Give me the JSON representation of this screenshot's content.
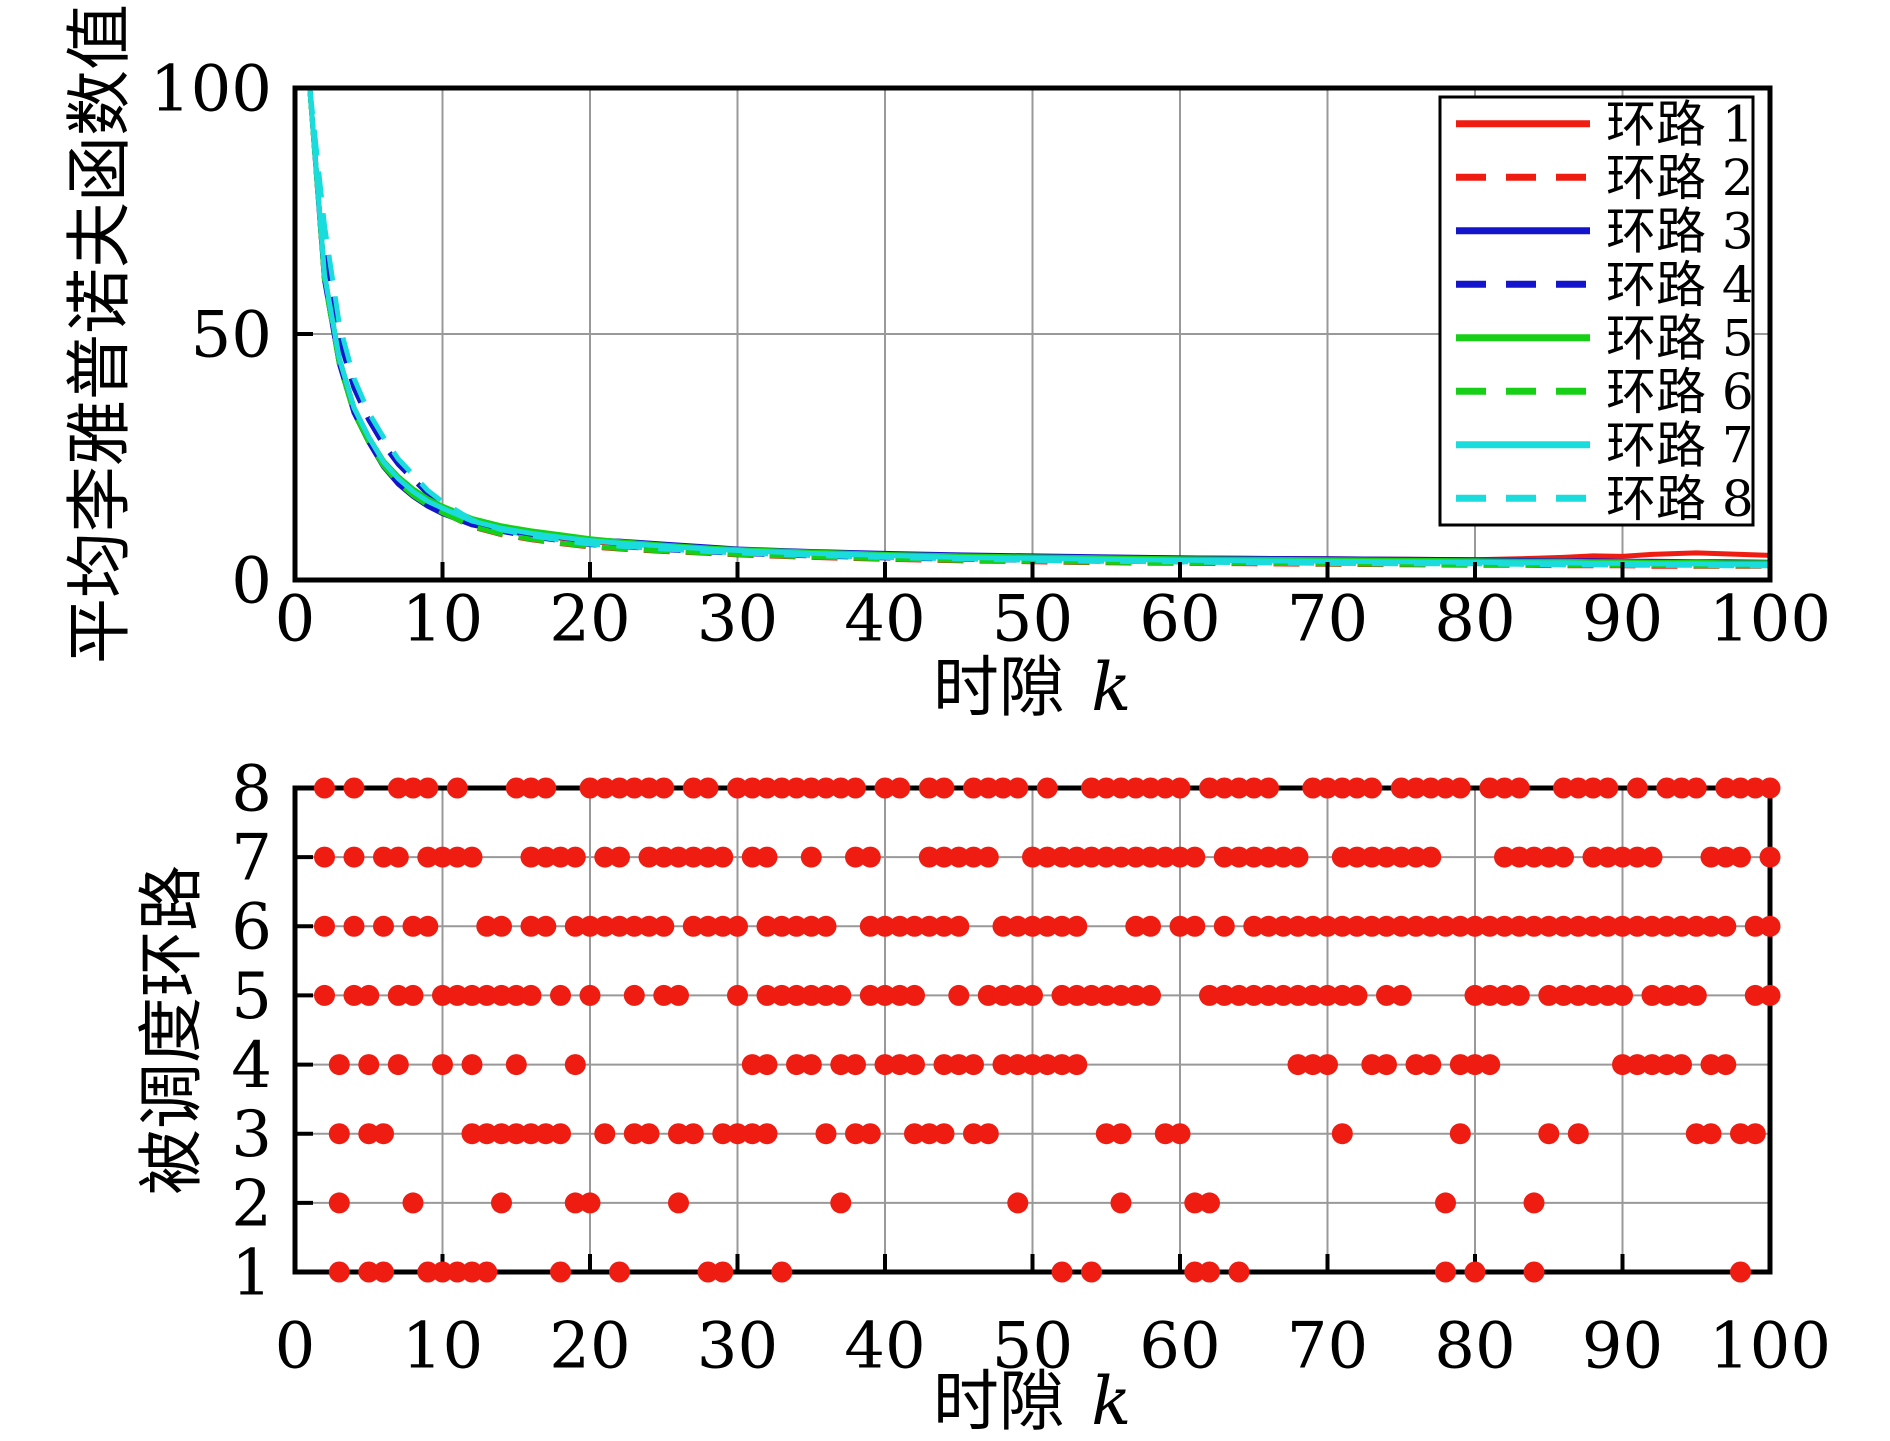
{
  "figure": {
    "background": "#ffffff",
    "grid_color": "#999999",
    "axis_color": "#000000"
  },
  "chart_data": [
    {
      "type": "line",
      "name": "average-lyapunov-chart",
      "ylabel": "平均李雅普诺夫函数值",
      "xlabel_text": "时隙",
      "xlabel_var": "k",
      "xlim": [
        0,
        100
      ],
      "ylim": [
        0,
        100
      ],
      "xticks": [
        0,
        10,
        20,
        30,
        40,
        50,
        60,
        70,
        80,
        90,
        100
      ],
      "yticks": [
        0,
        50,
        100
      ],
      "grid": true,
      "legend_position": "top-right",
      "x": [
        1,
        2,
        3,
        4,
        5,
        6,
        7,
        8,
        9,
        10,
        12,
        14,
        16,
        18,
        20,
        22,
        25,
        28,
        30,
        35,
        40,
        45,
        50,
        55,
        60,
        65,
        70,
        75,
        80,
        83,
        86,
        88,
        90,
        92,
        95,
        97,
        100
      ],
      "series": [
        {
          "name": "环路 1",
          "color": "#ee1c11",
          "dashed": false,
          "values": [
            100,
            62,
            45,
            35,
            29,
            24,
            20.5,
            18,
            16,
            14.5,
            11.8,
            10.3,
            9.3,
            8.5,
            7.8,
            7.4,
            6.9,
            6.4,
            6.2,
            5.7,
            5.3,
            5.0,
            4.8,
            4.6,
            4.5,
            4.4,
            4.3,
            4.2,
            4.1,
            4.3,
            4.6,
            4.9,
            4.8,
            5.2,
            5.5,
            5.3,
            5.0
          ]
        },
        {
          "name": "环路 2",
          "color": "#ee1c11",
          "dashed": true,
          "values": [
            100,
            61,
            44,
            34,
            28,
            23.2,
            19.8,
            17.3,
            15.3,
            13.8,
            10.8,
            9.2,
            8.2,
            7.4,
            6.7,
            6.3,
            5.8,
            5.4,
            5.1,
            4.6,
            4.2,
            3.9,
            3.7,
            3.5,
            3.4,
            3.3,
            3.2,
            3.1,
            3.0,
            3.0,
            2.9,
            2.9,
            2.9,
            2.8,
            2.8,
            2.8,
            2.8
          ]
        },
        {
          "name": "环路 3",
          "color": "#1414cc",
          "dashed": false,
          "values": [
            100,
            61,
            44,
            34,
            28,
            23,
            19.5,
            17,
            15,
            13.5,
            11.2,
            10.0,
            9.2,
            8.6,
            8.1,
            7.9,
            7.3,
            6.7,
            6.3,
            5.8,
            5.4,
            5.1,
            4.9,
            4.7,
            4.5,
            4.4,
            4.3,
            4.2,
            4.1,
            4.0,
            3.9,
            3.9,
            3.8,
            3.8,
            3.7,
            3.7,
            3.6
          ]
        },
        {
          "name": "环路 4",
          "color": "#1414cc",
          "dashed": true,
          "values": [
            100,
            68,
            49,
            39,
            32.5,
            27.5,
            23.5,
            20.5,
            17.5,
            15.3,
            11.8,
            9.9,
            8.8,
            8.0,
            7.2,
            6.8,
            6.2,
            5.7,
            5.4,
            4.9,
            4.5,
            4.2,
            4.0,
            3.8,
            3.7,
            3.6,
            3.5,
            3.4,
            3.4,
            3.3,
            3.3,
            3.2,
            3.2,
            3.2,
            3.1,
            3.1,
            3.1
          ]
        },
        {
          "name": "环路 5",
          "color": "#17cf17",
          "dashed": false,
          "values": [
            100,
            62,
            45,
            35,
            29,
            24.2,
            21,
            18.5,
            16.5,
            15,
            12.5,
            11,
            10,
            9.2,
            8.4,
            7.8,
            7.1,
            6.5,
            6.2,
            5.7,
            5.2,
            4.9,
            4.7,
            4.5,
            4.3,
            4.2,
            4.1,
            4.0,
            3.9,
            3.8,
            3.8,
            3.7,
            3.7,
            3.6,
            3.6,
            3.5,
            3.5
          ]
        },
        {
          "name": "环路 6",
          "color": "#17cf17",
          "dashed": true,
          "values": [
            100,
            61,
            44,
            34,
            28,
            23.2,
            19.8,
            17.2,
            15.2,
            13.7,
            10.9,
            9.3,
            8.3,
            7.5,
            6.8,
            6.4,
            5.9,
            5.5,
            5.2,
            4.7,
            4.3,
            4.0,
            3.8,
            3.6,
            3.5,
            3.4,
            3.3,
            3.2,
            3.1,
            3.1,
            3.0,
            3.0,
            3.0,
            3.0,
            2.9,
            2.9,
            2.9
          ]
        },
        {
          "name": "环路 7",
          "color": "#1adcdc",
          "dashed": false,
          "values": [
            100,
            62,
            45,
            35,
            29,
            24,
            20.6,
            18,
            16,
            14.6,
            12,
            10.5,
            9.5,
            8.7,
            8.0,
            7.5,
            6.9,
            6.3,
            6.0,
            5.4,
            5.0,
            4.6,
            4.4,
            4.2,
            4.0,
            3.9,
            3.8,
            3.7,
            3.6,
            3.5,
            3.5,
            3.4,
            3.4,
            3.3,
            3.3,
            3.2,
            3.2
          ]
        },
        {
          "name": "环路 8",
          "color": "#1adcdc",
          "dashed": true,
          "values": [
            100,
            72,
            52,
            41,
            34,
            29,
            24.6,
            21.4,
            18.2,
            15.9,
            12.2,
            10.2,
            9.0,
            8.1,
            7.3,
            6.9,
            6.3,
            5.8,
            5.5,
            5.0,
            4.6,
            4.3,
            4.0,
            3.8,
            3.7,
            3.5,
            3.4,
            3.3,
            3.3,
            3.2,
            3.1,
            3.1,
            3.0,
            3.0,
            3.0,
            2.9,
            2.9
          ]
        }
      ]
    },
    {
      "type": "scatter",
      "name": "scheduled-loops-chart",
      "ylabel": "被调度环路",
      "xlabel_text": "时隙",
      "xlabel_var": "k",
      "xlim": [
        0,
        100
      ],
      "ylim": [
        1,
        8
      ],
      "xticks": [
        0,
        10,
        20,
        30,
        40,
        50,
        60,
        70,
        80,
        90,
        100
      ],
      "yticks": [
        1,
        2,
        3,
        4,
        5,
        6,
        7,
        8
      ],
      "grid": true,
      "marker": {
        "shape": "circle",
        "color": "#ee1c11",
        "radius": 10.5
      },
      "points_by_loop": {
        "1": [
          3,
          5,
          6,
          9,
          10,
          11,
          12,
          13,
          18,
          22,
          28,
          29,
          33,
          52,
          54,
          61,
          62,
          64,
          78,
          80,
          84,
          98
        ],
        "2": [
          3,
          8,
          14,
          19,
          20,
          26,
          37,
          49,
          56,
          61,
          62,
          78,
          84
        ],
        "3": [
          3,
          5,
          6,
          12,
          13,
          14,
          15,
          16,
          17,
          18,
          21,
          23,
          24,
          26,
          27,
          29,
          30,
          31,
          32,
          36,
          38,
          39,
          42,
          43,
          44,
          46,
          47,
          55,
          56,
          59,
          60,
          71,
          79,
          85,
          87,
          95,
          96,
          98,
          99
        ],
        "4": [
          3,
          5,
          7,
          10,
          12,
          15,
          19,
          31,
          32,
          34,
          35,
          37,
          38,
          40,
          41,
          42,
          44,
          45,
          46,
          48,
          49,
          50,
          51,
          52,
          53,
          68,
          69,
          70,
          73,
          74,
          76,
          77,
          79,
          80,
          81,
          90,
          91,
          92,
          93,
          94,
          96,
          97
        ],
        "5": [
          2,
          4,
          5,
          7,
          8,
          10,
          11,
          12,
          13,
          14,
          15,
          16,
          18,
          20,
          23,
          25,
          26,
          30,
          32,
          33,
          34,
          35,
          36,
          37,
          39,
          40,
          41,
          42,
          45,
          47,
          48,
          49,
          50,
          52,
          53,
          54,
          55,
          56,
          57,
          58,
          62,
          63,
          64,
          65,
          66,
          67,
          68,
          69,
          70,
          71,
          72,
          74,
          75,
          80,
          81,
          82,
          83,
          85,
          86,
          87,
          88,
          89,
          90,
          92,
          93,
          94,
          95,
          99,
          100
        ],
        "6": [
          2,
          4,
          6,
          8,
          9,
          13,
          14,
          16,
          17,
          19,
          20,
          21,
          22,
          23,
          24,
          25,
          27,
          28,
          29,
          30,
          32,
          33,
          34,
          35,
          36,
          39,
          40,
          41,
          42,
          43,
          44,
          45,
          48,
          49,
          50,
          51,
          52,
          53,
          57,
          58,
          60,
          61,
          63,
          65,
          66,
          67,
          68,
          69,
          70,
          71,
          72,
          73,
          74,
          75,
          76,
          77,
          78,
          79,
          80,
          81,
          82,
          83,
          84,
          85,
          86,
          87,
          88,
          89,
          90,
          91,
          92,
          93,
          94,
          95,
          96,
          97,
          99,
          100
        ],
        "7": [
          2,
          4,
          6,
          7,
          9,
          10,
          11,
          12,
          16,
          17,
          18,
          19,
          21,
          22,
          24,
          25,
          26,
          27,
          28,
          29,
          31,
          32,
          35,
          38,
          39,
          43,
          44,
          45,
          46,
          47,
          50,
          51,
          52,
          53,
          54,
          55,
          56,
          57,
          58,
          59,
          60,
          61,
          63,
          64,
          65,
          66,
          67,
          68,
          71,
          72,
          73,
          74,
          75,
          76,
          77,
          82,
          83,
          84,
          85,
          86,
          88,
          89,
          90,
          91,
          92,
          96,
          97,
          98,
          100
        ],
        "8": [
          2,
          4,
          7,
          8,
          9,
          11,
          15,
          16,
          17,
          20,
          21,
          22,
          23,
          24,
          25,
          27,
          28,
          30,
          31,
          32,
          33,
          34,
          35,
          36,
          37,
          38,
          40,
          41,
          43,
          44,
          46,
          47,
          48,
          49,
          51,
          54,
          55,
          56,
          57,
          58,
          59,
          60,
          62,
          63,
          64,
          65,
          66,
          69,
          70,
          71,
          72,
          73,
          75,
          76,
          77,
          78,
          79,
          81,
          82,
          83,
          86,
          87,
          88,
          89,
          91,
          93,
          94,
          95,
          97,
          98,
          99,
          100
        ]
      }
    }
  ]
}
